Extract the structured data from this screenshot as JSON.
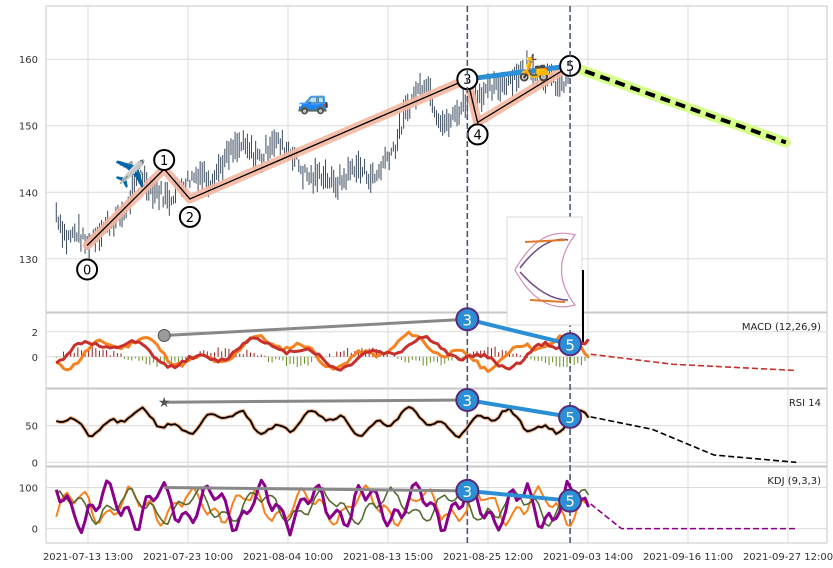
{
  "chart_data": [
    {
      "type": "line",
      "panel": "price",
      "ylim": [
        122,
        168
      ],
      "yticks": [
        130,
        140,
        150,
        160
      ],
      "grid": true,
      "candles_x": [
        0,
        59
      ],
      "candle_samples": [
        {
          "x": 0,
          "y": 137
        },
        {
          "x": 1,
          "y": 133
        },
        {
          "x": 2,
          "y": 134
        },
        {
          "x": 3,
          "y": 132
        },
        {
          "x": 4,
          "y": 134
        },
        {
          "x": 5,
          "y": 135
        },
        {
          "x": 6,
          "y": 136
        },
        {
          "x": 7,
          "y": 138
        },
        {
          "x": 8,
          "y": 143
        },
        {
          "x": 9,
          "y": 141
        },
        {
          "x": 10,
          "y": 140
        },
        {
          "x": 11,
          "y": 139
        },
        {
          "x": 12,
          "y": 141
        },
        {
          "x": 13,
          "y": 142
        },
        {
          "x": 14,
          "y": 143
        },
        {
          "x": 15,
          "y": 142
        },
        {
          "x": 16,
          "y": 144
        },
        {
          "x": 17,
          "y": 146
        },
        {
          "x": 18,
          "y": 147
        },
        {
          "x": 19,
          "y": 146
        },
        {
          "x": 20,
          "y": 145
        },
        {
          "x": 21,
          "y": 148
        },
        {
          "x": 22,
          "y": 147
        },
        {
          "x": 23,
          "y": 146
        },
        {
          "x": 24,
          "y": 143
        },
        {
          "x": 25,
          "y": 142
        },
        {
          "x": 26,
          "y": 143
        },
        {
          "x": 27,
          "y": 141
        },
        {
          "x": 28,
          "y": 142
        },
        {
          "x": 29,
          "y": 144
        },
        {
          "x": 30,
          "y": 143
        },
        {
          "x": 31,
          "y": 142
        },
        {
          "x": 32,
          "y": 145
        },
        {
          "x": 33,
          "y": 147
        },
        {
          "x": 34,
          "y": 152
        },
        {
          "x": 35,
          "y": 155
        },
        {
          "x": 36,
          "y": 157
        },
        {
          "x": 37,
          "y": 152
        },
        {
          "x": 38,
          "y": 150
        },
        {
          "x": 39,
          "y": 152
        },
        {
          "x": 40,
          "y": 154
        },
        {
          "x": 41,
          "y": 155
        },
        {
          "x": 42,
          "y": 155
        },
        {
          "x": 43,
          "y": 156
        },
        {
          "x": 44,
          "y": 157
        },
        {
          "x": 45,
          "y": 158
        },
        {
          "x": 46,
          "y": 159
        },
        {
          "x": 47,
          "y": 158
        },
        {
          "x": 48,
          "y": 157
        },
        {
          "x": 49,
          "y": 156
        },
        {
          "x": 50,
          "y": 157
        }
      ],
      "wave_points": [
        {
          "label": "0",
          "x": 3,
          "y": 132
        },
        {
          "label": "1",
          "x": 10.5,
          "y": 143.5
        },
        {
          "label": "2",
          "x": 13,
          "y": 139
        },
        {
          "label": "3",
          "x": 40,
          "y": 157
        },
        {
          "label": "4",
          "x": 41,
          "y": 150.5
        },
        {
          "label": "5",
          "x": 50,
          "y": 159
        }
      ],
      "forecast": {
        "x": [
          50,
          71
        ],
        "y": [
          159,
          147.5
        ]
      },
      "annotations": [
        "✈️",
        "🚙",
        "🛵"
      ]
    },
    {
      "type": "line",
      "panel": "macd",
      "title": "MACD (12,26,9)",
      "ylim": [
        -2.5,
        3.5
      ],
      "yticks": [
        0,
        2
      ],
      "divergence": {
        "start": {
          "x": 10.5,
          "y": 1.7
        },
        "mid": {
          "x": 40,
          "y": 3
        },
        "end": {
          "x": 50,
          "y": 1
        },
        "labels": [
          "3",
          "5"
        ]
      }
    },
    {
      "type": "line",
      "panel": "rsi",
      "title": "RSI 14",
      "ylim": [
        -5,
        100
      ],
      "yticks": [
        0,
        50
      ],
      "divergence": {
        "start": {
          "x": 10.5,
          "y": 82
        },
        "mid": {
          "x": 40,
          "y": 85
        },
        "end": {
          "x": 50,
          "y": 62
        },
        "labels": [
          "3",
          "5"
        ]
      }
    },
    {
      "type": "line",
      "panel": "kdj",
      "title": "KDJ (9,3,3)",
      "ylim": [
        -35,
        150
      ],
      "yticks": [
        0,
        100
      ],
      "divergence": {
        "start": {
          "x": 10.5,
          "y": 100
        },
        "mid": {
          "x": 40,
          "y": 92
        },
        "end": {
          "x": 50,
          "y": 68
        },
        "labels": [
          "3",
          "5"
        ]
      }
    }
  ],
  "x_axis": {
    "tick_labels": [
      "2021-07-13 13:00",
      "2021-07-23 10:00",
      "2021-08-04 10:00",
      "2021-08-13 15:00",
      "2021-08-25 12:00",
      "2021-09-03 14:00",
      "2021-09-16 11:00",
      "2021-09-27 12:00"
    ],
    "vlines_x": [
      40,
      50
    ]
  },
  "colors": {
    "candle": "#3a4a5e",
    "wave_band": "#f4b7a0",
    "wave_line": "#000000",
    "blue": "#2a8fd4",
    "gray": "#888888",
    "forecast_band": "#d6ff8a",
    "macd_orange": "#f5821f",
    "macd_red": "#c8302c",
    "hist_pos": "#9b1c1c",
    "hist_neg": "#6b8e23",
    "kdj_purple": "#8b008b"
  }
}
